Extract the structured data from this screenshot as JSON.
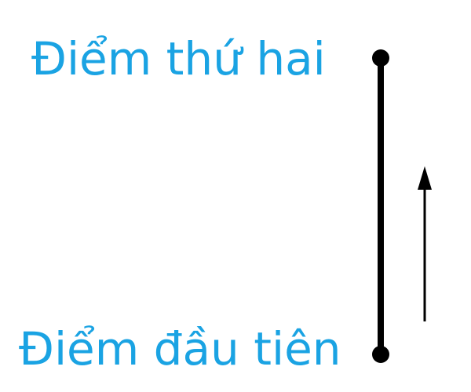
{
  "labels": {
    "second_point": "Điểm thứ hai",
    "first_point": "Điểm đầu tiên"
  },
  "colors": {
    "label": "#1aa3e3",
    "line": "#000000"
  }
}
